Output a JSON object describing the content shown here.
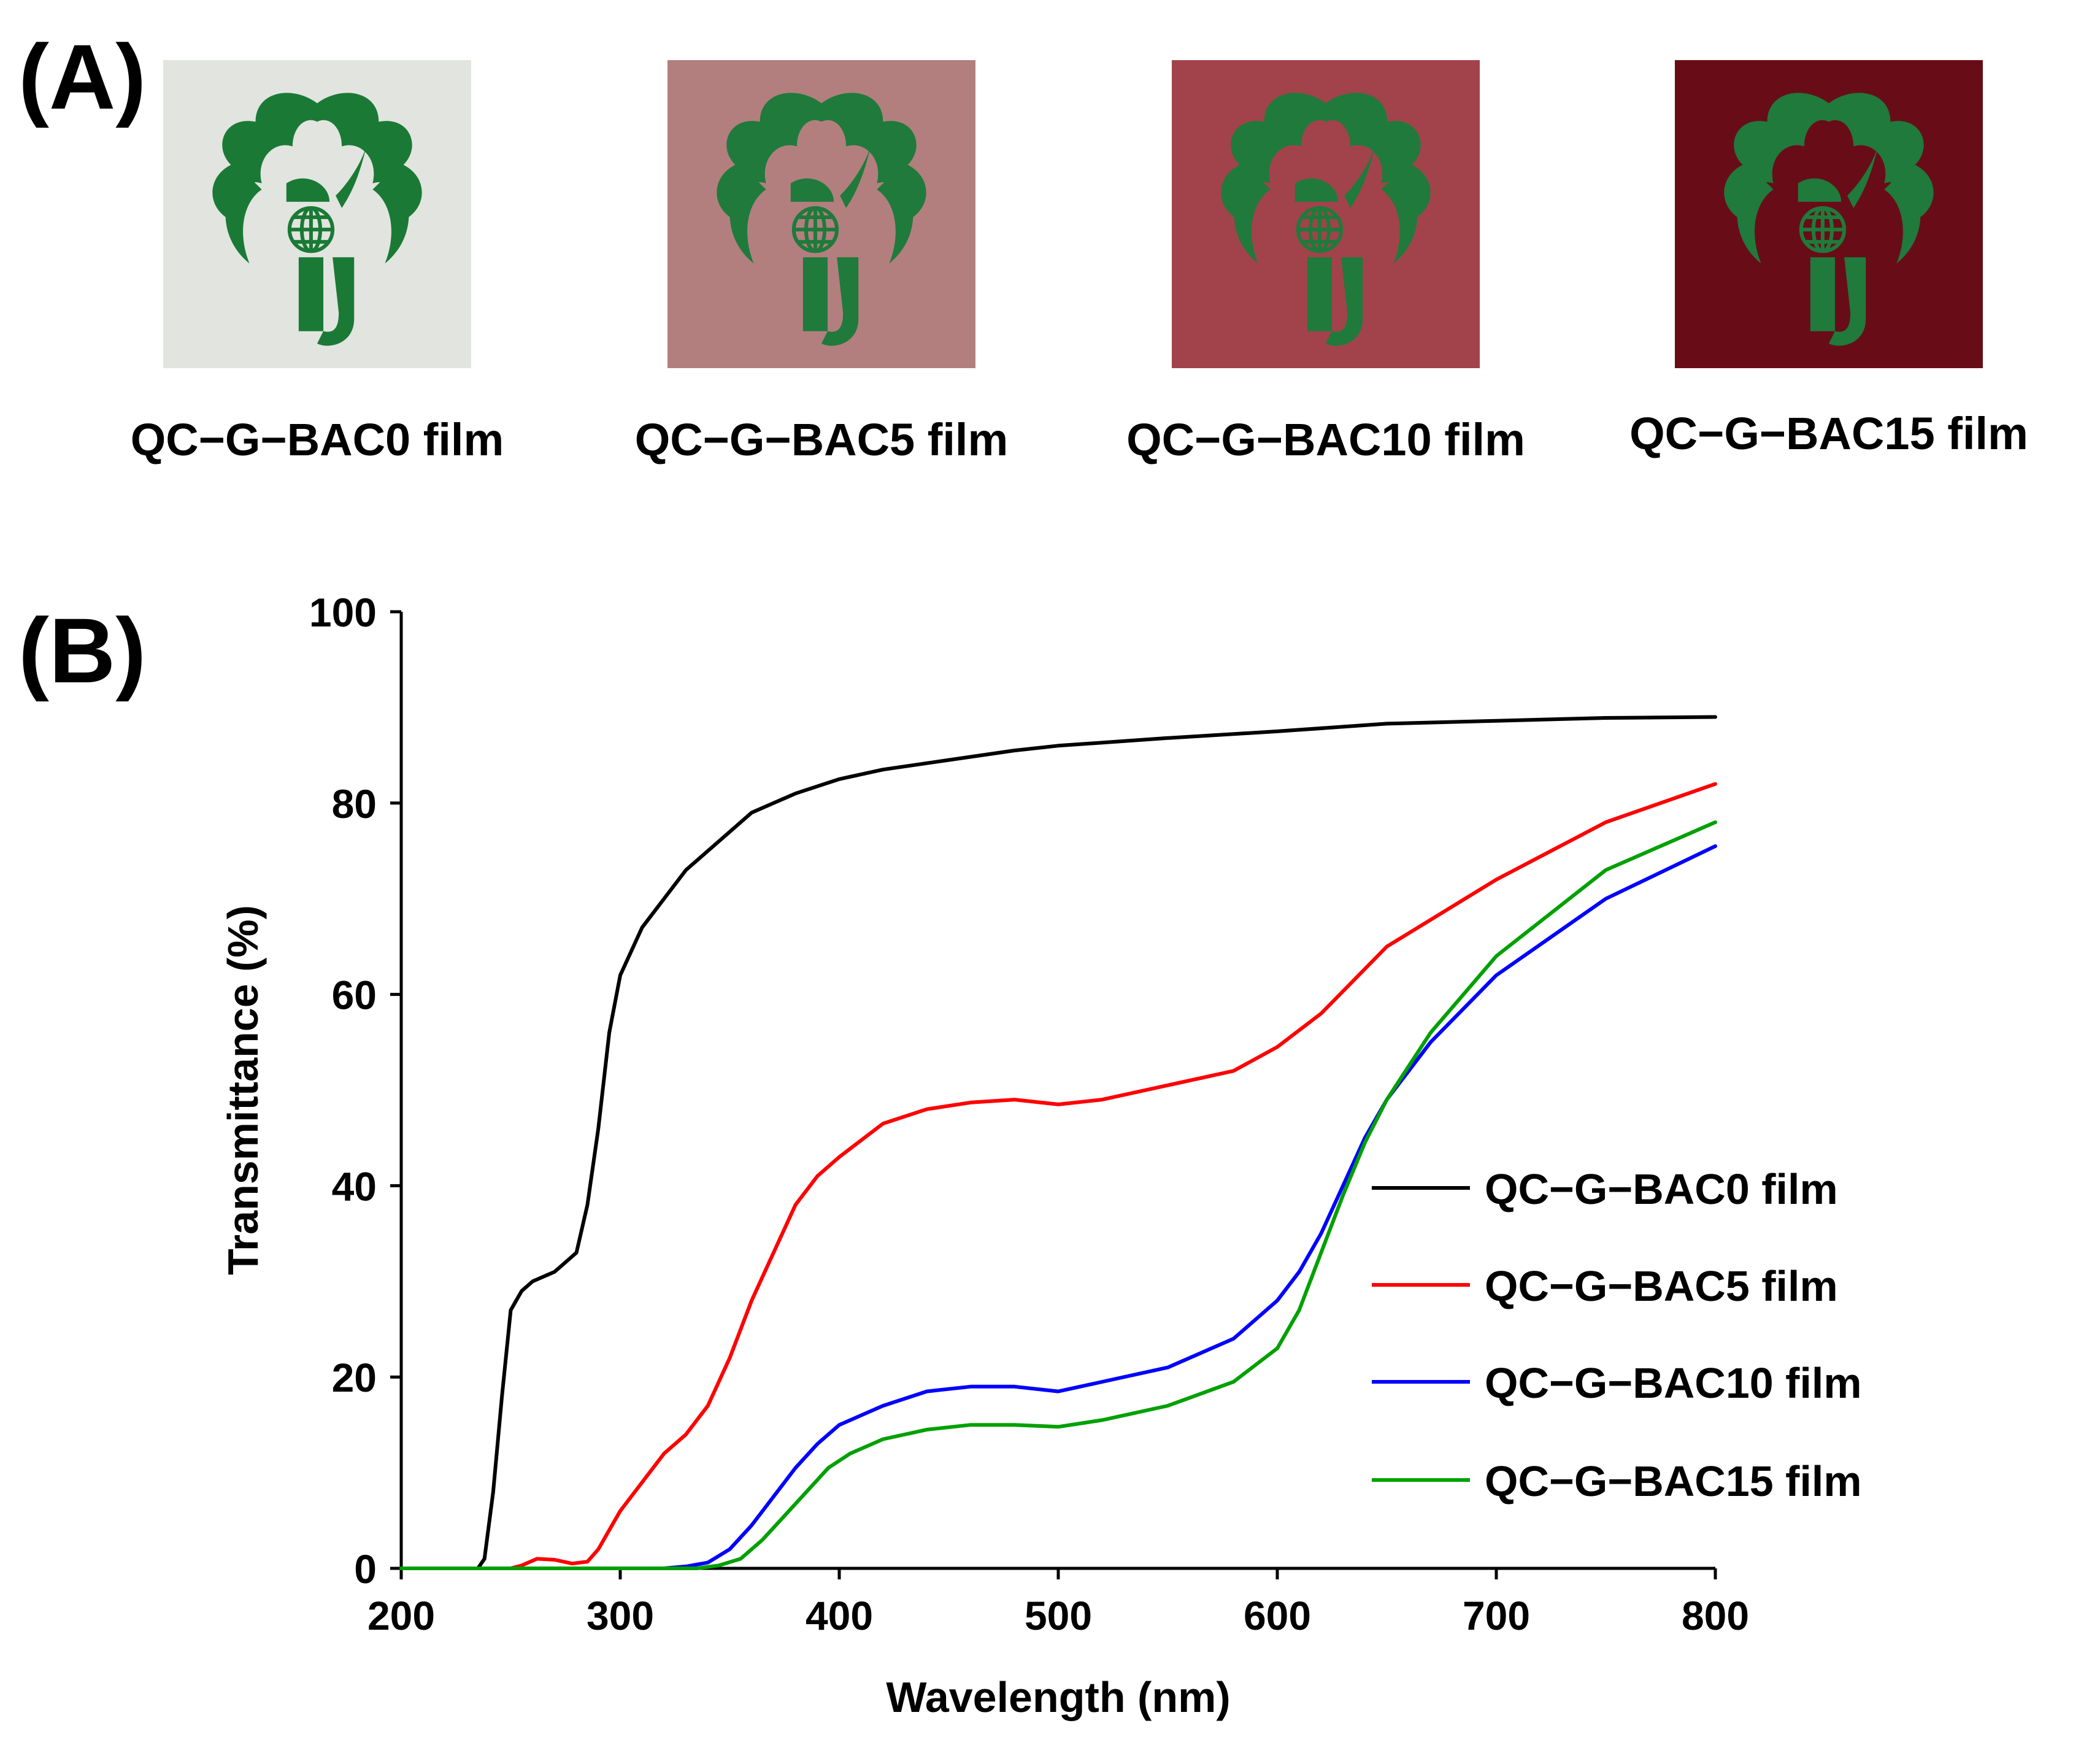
{
  "panels": {
    "a_label": "(A)",
    "b_label": "(B)"
  },
  "films": [
    {
      "caption": "QC−G−BAC0 film",
      "color": "#e2e4df",
      "logo_color": "#1a7a35",
      "icon": "uoj-tree-logo-icon"
    },
    {
      "caption": "QC−G−BAC5 film",
      "color": "#b27f7e",
      "logo_color": "#1f7a3c",
      "icon": "uoj-tree-logo-icon"
    },
    {
      "caption": "QC−G−BAC10 film",
      "color": "#a2434b",
      "logo_color": "#1f7a3c",
      "icon": "uoj-tree-logo-icon"
    },
    {
      "caption": "QC−G−BAC15 film",
      "color": "#680d17",
      "logo_color": "#1f7a3c",
      "icon": "uoj-tree-logo-icon"
    }
  ],
  "chart_data": {
    "type": "line",
    "title": "",
    "xlabel": "Wavelength (nm)",
    "ylabel": "Transmittance (%)",
    "xlim": [
      200,
      800
    ],
    "ylim": [
      0,
      100
    ],
    "xticks": [
      200,
      300,
      400,
      500,
      600,
      700,
      800
    ],
    "yticks": [
      0,
      20,
      40,
      60,
      80,
      100
    ],
    "grid": false,
    "legend_position": "center-right",
    "series": [
      {
        "name": "QC−G−BAC0 film",
        "color": "#000000",
        "x": [
          200,
          235,
          238,
          242,
          246,
          250,
          255,
          260,
          265,
          270,
          275,
          280,
          285,
          290,
          295,
          300,
          310,
          320,
          330,
          340,
          350,
          360,
          370,
          380,
          400,
          420,
          450,
          480,
          500,
          550,
          600,
          650,
          700,
          750,
          800
        ],
        "y": [
          0,
          0,
          1,
          8,
          18,
          27,
          29,
          30,
          30.5,
          31,
          32,
          33,
          38,
          46,
          56,
          62,
          67,
          70,
          73,
          75,
          77,
          79,
          80,
          81,
          82.5,
          83.5,
          84.5,
          85.5,
          86,
          86.8,
          87.5,
          88.3,
          88.6,
          88.9,
          89
        ]
      },
      {
        "name": "QC−G−BAC5 film",
        "color": "#ff0000",
        "x": [
          200,
          250,
          255,
          262,
          270,
          278,
          285,
          290,
          295,
          300,
          310,
          320,
          330,
          340,
          350,
          360,
          370,
          380,
          390,
          400,
          420,
          440,
          460,
          480,
          500,
          520,
          550,
          580,
          600,
          620,
          650,
          700,
          750,
          800
        ],
        "y": [
          0,
          0,
          0.3,
          1,
          0.9,
          0.5,
          0.7,
          2,
          4,
          6,
          9,
          12,
          14,
          17,
          22,
          28,
          33,
          38,
          41,
          43,
          46.5,
          48,
          48.7,
          49,
          48.5,
          49,
          50.5,
          52,
          54.5,
          58,
          65,
          72,
          78,
          82
        ]
      },
      {
        "name": "QC−G−BAC10 film",
        "color": "#0000ff",
        "x": [
          200,
          320,
          330,
          340,
          350,
          360,
          370,
          380,
          390,
          400,
          420,
          440,
          460,
          480,
          500,
          520,
          550,
          580,
          600,
          610,
          620,
          630,
          640,
          650,
          670,
          700,
          750,
          800
        ],
        "y": [
          0,
          0,
          0.2,
          0.6,
          2,
          4.5,
          7.5,
          10.5,
          13,
          15,
          17,
          18.5,
          19,
          19,
          18.5,
          19.5,
          21,
          24,
          28,
          31,
          35,
          40,
          45,
          49,
          55,
          62,
          70,
          75.5
        ]
      },
      {
        "name": "QC−G−BAC15 film",
        "color": "#00a000",
        "x": [
          200,
          335,
          345,
          355,
          365,
          375,
          385,
          395,
          405,
          420,
          440,
          460,
          480,
          500,
          520,
          550,
          580,
          600,
          610,
          620,
          630,
          640,
          650,
          670,
          700,
          750,
          800
        ],
        "y": [
          0,
          0,
          0.3,
          1,
          3,
          5.5,
          8,
          10.5,
          12,
          13.5,
          14.5,
          15,
          15,
          14.8,
          15.5,
          17,
          19.5,
          23,
          27,
          33,
          39,
          44.5,
          49,
          56,
          64,
          73,
          78
        ]
      }
    ]
  }
}
